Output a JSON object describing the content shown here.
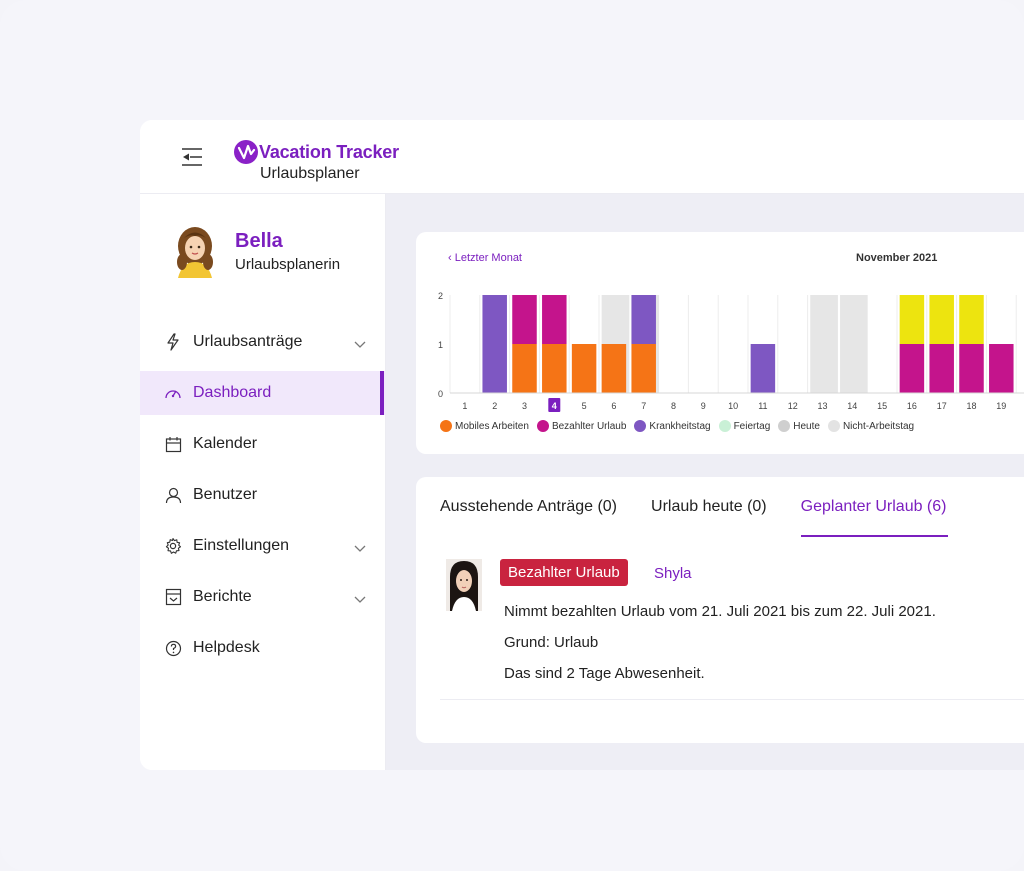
{
  "app": {
    "logo_text": "Vacation Tracker",
    "logo_subtitle": "Urlaubsplaner"
  },
  "profile": {
    "name": "Bella",
    "role": "Urlaubsplanerin"
  },
  "nav": {
    "items": [
      {
        "label": "Urlaubsanträge",
        "icon": "bolt-icon",
        "expandable": true
      },
      {
        "label": "Dashboard",
        "icon": "gauge-icon",
        "active": true
      },
      {
        "label": "Kalender",
        "icon": "calendar-icon"
      },
      {
        "label": "Benutzer",
        "icon": "user-icon"
      },
      {
        "label": "Einstellungen",
        "icon": "gear-icon",
        "expandable": true
      },
      {
        "label": "Berichte",
        "icon": "report-icon",
        "expandable": true
      },
      {
        "label": "Helpdesk",
        "icon": "help-icon"
      }
    ]
  },
  "chart_header": {
    "prev_label": "Letzter Monat",
    "month": "November 2021"
  },
  "chart_data": {
    "type": "bar",
    "stacked": true,
    "ylim": [
      0,
      2
    ],
    "yticks": [
      0,
      1,
      2
    ],
    "x": [
      1,
      2,
      3,
      4,
      5,
      6,
      7,
      8,
      9,
      10,
      11,
      12,
      13,
      14,
      15,
      16,
      17,
      18,
      19
    ],
    "highlighted_day": 4,
    "non_working_days": [
      6,
      7,
      13,
      14
    ],
    "series": [
      {
        "name": "Mobiles Arbeiten",
        "color": "#f57416",
        "values": [
          0,
          0,
          1,
          1,
          1,
          1,
          1,
          0,
          0,
          0,
          0,
          0,
          0,
          0,
          0,
          0,
          0,
          0,
          0
        ]
      },
      {
        "name": "Bezahlter Urlaub",
        "color": "#c4148c",
        "values": [
          0,
          0,
          1,
          1,
          0,
          0,
          0,
          0,
          0,
          0,
          0,
          0,
          0,
          0,
          0,
          1,
          1,
          1,
          1
        ]
      },
      {
        "name": "Krankheitstag",
        "color": "#7e57c2",
        "values": [
          0,
          2,
          0,
          0,
          0,
          0,
          1,
          0,
          0,
          0,
          1,
          0,
          0,
          0,
          0,
          0,
          0,
          0,
          0
        ]
      },
      {
        "name": "",
        "color": "#ede40f",
        "values": [
          0,
          0,
          0,
          0,
          0,
          0,
          0,
          0,
          0,
          0,
          0,
          0,
          0,
          0,
          0,
          1,
          1,
          1,
          0
        ]
      }
    ],
    "legend": [
      {
        "name": "Mobiles Arbeiten",
        "color": "#f57416"
      },
      {
        "name": "Bezahlter Urlaub",
        "color": "#c4148c"
      },
      {
        "name": "Krankheitstag",
        "color": "#7e57c2"
      },
      {
        "name": "Feiertag",
        "color": "#c9f0d6"
      },
      {
        "name": "Heute",
        "color": "#cfcfcf"
      },
      {
        "name": "Nicht-Arbeitstag",
        "color": "#e3e3e3"
      }
    ]
  },
  "tabs": [
    {
      "label": "Ausstehende Anträge (0)"
    },
    {
      "label": "Urlaub heute (0)"
    },
    {
      "label": "Geplanter Urlaub (6)",
      "active": true
    }
  ],
  "entry": {
    "leave_type": "Bezahlter Urlaub",
    "name": "Shyla",
    "line1": "Nimmt bezahlten Urlaub vom 21. Juli 2021 bis zum 22. Juli 2021.",
    "line2": "Grund: Urlaub",
    "line3": "Das sind 2 Tage Abwesenheit."
  }
}
